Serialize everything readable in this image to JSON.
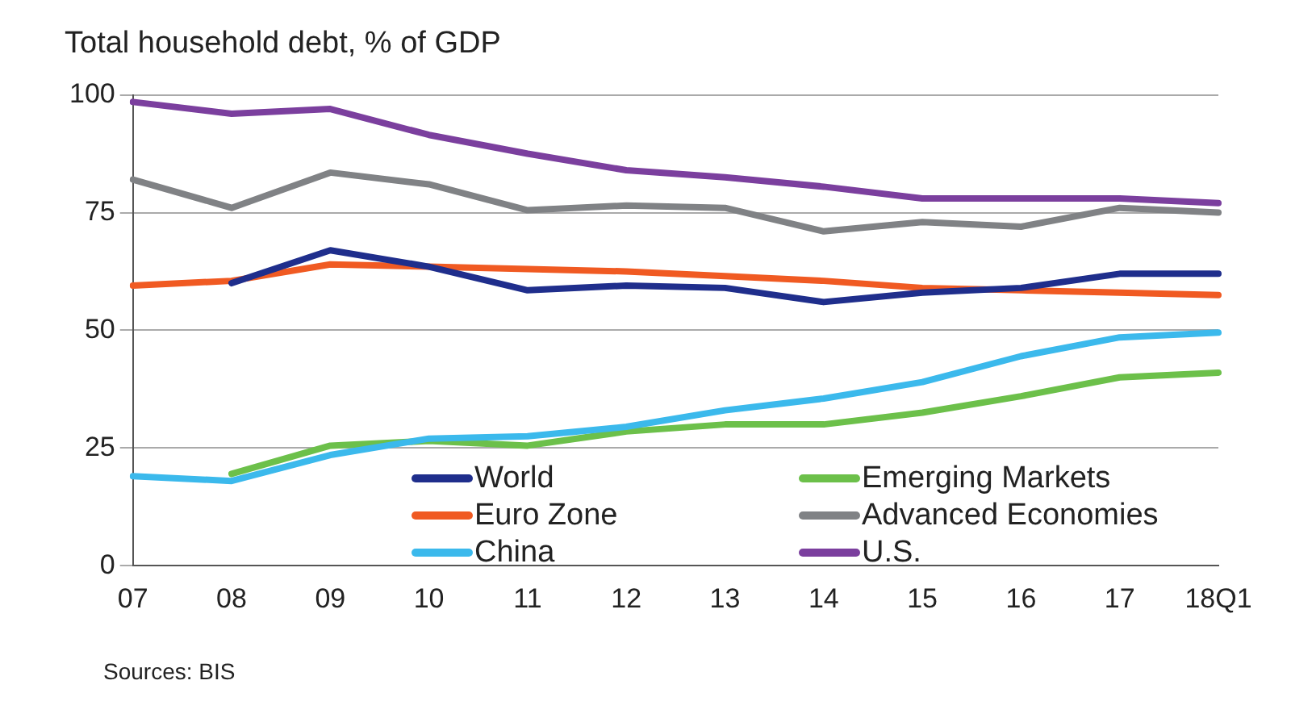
{
  "chart_data": {
    "type": "line",
    "title": "Total household debt, % of GDP",
    "categories": [
      "07",
      "08",
      "09",
      "10",
      "11",
      "12",
      "13",
      "14",
      "15",
      "16",
      "17",
      "18Q1"
    ],
    "series": [
      {
        "name": "World",
        "color": "#1f2e8c",
        "values": [
          null,
          60,
          67,
          63.5,
          58.5,
          59.5,
          59,
          56,
          58,
          59,
          62,
          62
        ]
      },
      {
        "name": "Euro Zone",
        "color": "#f05a22",
        "values": [
          59.5,
          60.5,
          64,
          63.5,
          63,
          62.5,
          61.5,
          60.5,
          59,
          58.5,
          58,
          57.5
        ]
      },
      {
        "name": "China",
        "color": "#3bb9ec",
        "values": [
          19,
          18,
          23.5,
          27,
          27.5,
          29.5,
          33,
          35.5,
          39,
          44.5,
          48.5,
          49.5
        ]
      },
      {
        "name": "Emerging Markets",
        "color": "#6cc04a",
        "values": [
          null,
          19.5,
          25.5,
          26.5,
          25.5,
          28.5,
          30,
          30,
          32.5,
          36,
          40,
          41
        ]
      },
      {
        "name": "Advanced Economies",
        "color": "#808285",
        "values": [
          82,
          76,
          83.5,
          81,
          75.5,
          76.5,
          76,
          71,
          73,
          72,
          76,
          75
        ]
      },
      {
        "name": "U.S.",
        "color": "#7b3f9e",
        "values": [
          98.5,
          96,
          97,
          91.5,
          87.5,
          84,
          82.5,
          80.5,
          78,
          78,
          78,
          77
        ]
      }
    ],
    "ylim": [
      0,
      100
    ],
    "yticks": [
      0,
      25,
      50,
      75,
      100
    ],
    "grid": "y",
    "legend": "bottom",
    "marker": "none",
    "line_style": "solid",
    "annotations": [
      "Sources: BIS"
    ]
  }
}
